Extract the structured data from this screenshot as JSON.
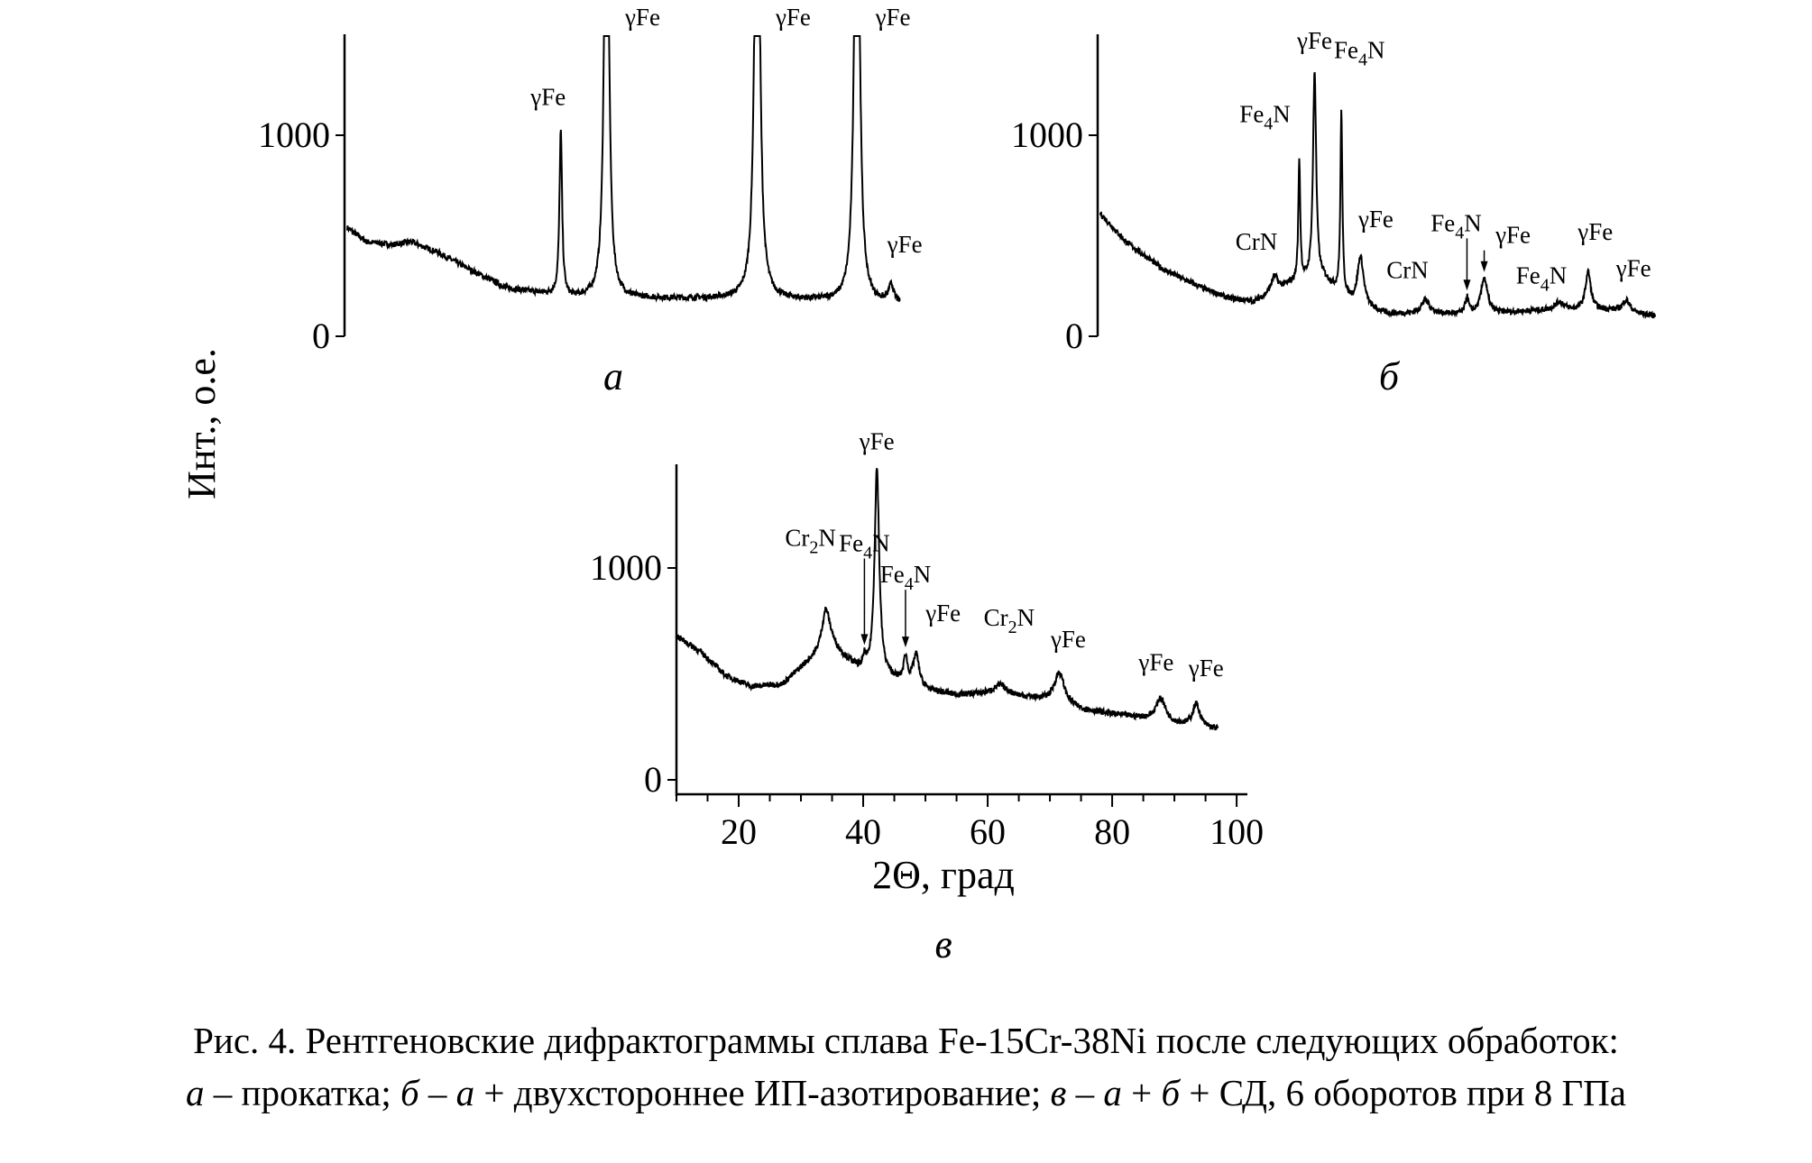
{
  "y_axis_label": "Инт., о.е.",
  "x_axis_label": "2Θ, град",
  "caption": {
    "line1": "Рис. 4. Рентгеновские дифрактограммы сплава Fe-15Cr-38Ni после следующих обработок:",
    "line2": {
      "a": "а",
      "t1": " – прокатка; ",
      "b": "б",
      "t2": " – ",
      "a2": "а",
      "t3": " + двухстороннее ИП-азотирование; ",
      "v": "в",
      "t4": " – ",
      "a3": "а",
      "t5": " + ",
      "b2": "б",
      "t6": " + СД, 6 оборотов при 8 ГПа"
    }
  },
  "chart_data": [
    {
      "panel": "а",
      "type": "line",
      "yticks": [
        "0",
        "1000"
      ],
      "ylim": [
        0,
        1500
      ],
      "xlim": [
        10,
        97
      ],
      "background": [
        [
          10,
          540
        ],
        [
          13,
          470
        ],
        [
          17,
          455
        ],
        [
          20,
          470
        ],
        [
          24,
          420
        ],
        [
          30,
          320
        ],
        [
          35,
          240
        ],
        [
          45,
          190
        ],
        [
          70,
          185
        ],
        [
          85,
          175
        ],
        [
          96,
          155
        ]
      ],
      "peaks": [
        {
          "x": 43.6,
          "h": 820,
          "w": 0.25,
          "label": "γFe"
        },
        {
          "x": 50.8,
          "h": 3200,
          "w": 0.35,
          "label": "γFe"
        },
        {
          "x": 74.5,
          "h": 3200,
          "w": 0.4,
          "label": "γFe"
        },
        {
          "x": 90.2,
          "h": 3200,
          "w": 0.4,
          "label": "γFe"
        },
        {
          "x": 95.6,
          "h": 90,
          "w": 0.5,
          "label": "γFe"
        }
      ]
    },
    {
      "panel": "б",
      "type": "line",
      "yticks": [
        "0",
        "1000"
      ],
      "ylim": [
        0,
        1500
      ],
      "xlim": [
        10,
        97
      ],
      "background": [
        [
          10,
          610
        ],
        [
          14,
          470
        ],
        [
          20,
          330
        ],
        [
          26,
          240
        ],
        [
          30,
          190
        ],
        [
          34,
          170
        ],
        [
          40,
          260
        ],
        [
          45,
          280
        ],
        [
          50,
          150
        ],
        [
          55,
          110
        ],
        [
          70,
          110
        ],
        [
          80,
          130
        ],
        [
          90,
          130
        ],
        [
          97,
          100
        ]
      ],
      "peaks": [
        {
          "x": 37.3,
          "h": 80,
          "w": 0.6,
          "label": "CrN"
        },
        {
          "x": 41.2,
          "h": 600,
          "w": 0.18,
          "label": "Fe4N"
        },
        {
          "x": 43.6,
          "h": 1040,
          "w": 0.3,
          "label": "γFe"
        },
        {
          "x": 47.8,
          "h": 900,
          "w": 0.18,
          "label": "Fe4N"
        },
        {
          "x": 50.8,
          "h": 250,
          "w": 0.6,
          "label": "γFe"
        },
        {
          "x": 61.0,
          "h": 70,
          "w": 0.8,
          "label": "CrN"
        },
        {
          "x": 67.5,
          "h": 80,
          "w": 0.3,
          "label": "Fe4N"
        },
        {
          "x": 70.2,
          "h": 180,
          "w": 0.6,
          "label": "γFe"
        },
        {
          "x": 82.0,
          "h": 40,
          "w": 0.8,
          "label": "Fe4N"
        },
        {
          "x": 86.5,
          "h": 190,
          "w": 0.5,
          "label": "γFe"
        },
        {
          "x": 92.5,
          "h": 60,
          "w": 0.7,
          "label": "γFe"
        }
      ]
    },
    {
      "panel": "в",
      "type": "line",
      "xticks": [
        "20",
        "40",
        "60",
        "80",
        "100"
      ],
      "xtick_values": [
        20,
        40,
        60,
        80,
        100
      ],
      "yticks": [
        "0",
        "1000"
      ],
      "ylim": [
        0,
        1500
      ],
      "xlim": [
        10,
        101
      ],
      "background": [
        [
          10,
          680
        ],
        [
          14,
          600
        ],
        [
          18,
          490
        ],
        [
          22,
          440
        ],
        [
          27,
          450
        ],
        [
          31,
          550
        ],
        [
          35,
          620
        ],
        [
          40,
          500
        ],
        [
          44,
          480
        ],
        [
          50,
          420
        ],
        [
          55,
          400
        ],
        [
          62,
          410
        ],
        [
          68,
          380
        ],
        [
          75,
          330
        ],
        [
          85,
          290
        ],
        [
          93,
          250
        ],
        [
          98,
          235
        ]
      ],
      "peaks": [
        {
          "x": 34.0,
          "h": 200,
          "w": 0.8,
          "label": "Cr2N"
        },
        {
          "x": 40.2,
          "h": 60,
          "w": 0.3,
          "label": "Fe4N"
        },
        {
          "x": 42.2,
          "h": 980,
          "w": 0.45,
          "label": "γFe"
        },
        {
          "x": 46.8,
          "h": 120,
          "w": 0.35,
          "label": "Fe4N"
        },
        {
          "x": 48.5,
          "h": 150,
          "w": 0.6,
          "label": "γFe"
        },
        {
          "x": 62.0,
          "h": 35,
          "w": 1.2,
          "label": "Cr2N"
        },
        {
          "x": 71.5,
          "h": 150,
          "w": 1.0,
          "label": "γFe"
        },
        {
          "x": 87.8,
          "h": 110,
          "w": 0.9,
          "label": "γFe"
        },
        {
          "x": 93.5,
          "h": 110,
          "w": 0.7,
          "label": "γFe"
        }
      ]
    }
  ]
}
